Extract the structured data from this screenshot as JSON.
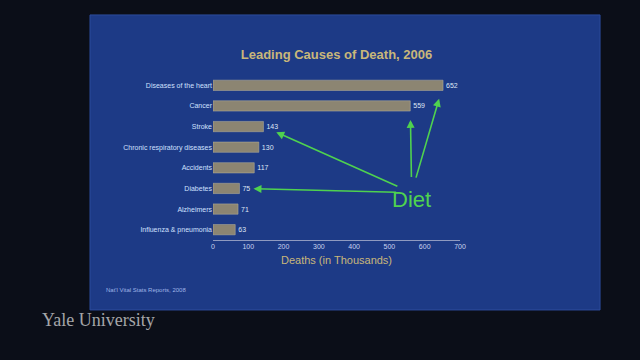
{
  "chart_data": {
    "type": "bar",
    "orientation": "horizontal",
    "title": "Leading Causes of Death, 2006",
    "xlabel": "Deaths (in Thousands)",
    "categories": [
      "Diseases of the heart",
      "Cancer",
      "Stroke",
      "Chronic respiratory diseases",
      "Accidents",
      "Diabetes",
      "Alzheimers",
      "Influenza & pneumonia"
    ],
    "values": [
      652,
      559,
      143,
      130,
      117,
      75,
      71,
      63
    ],
    "color": "#8c8572",
    "xlim": [
      0,
      700
    ],
    "xticks": [
      0,
      100,
      200,
      300,
      400,
      500,
      600,
      700
    ],
    "data_labels": true,
    "grid": false,
    "annotations": [
      {
        "text": "Diet",
        "targets": [
          "Diseases of the heart",
          "Cancer",
          "Stroke",
          "Diabetes"
        ]
      },
      {
        "text": "Nat'l Vital Stats Reports, 2008"
      },
      {
        "text": "Yale University"
      }
    ]
  }
}
